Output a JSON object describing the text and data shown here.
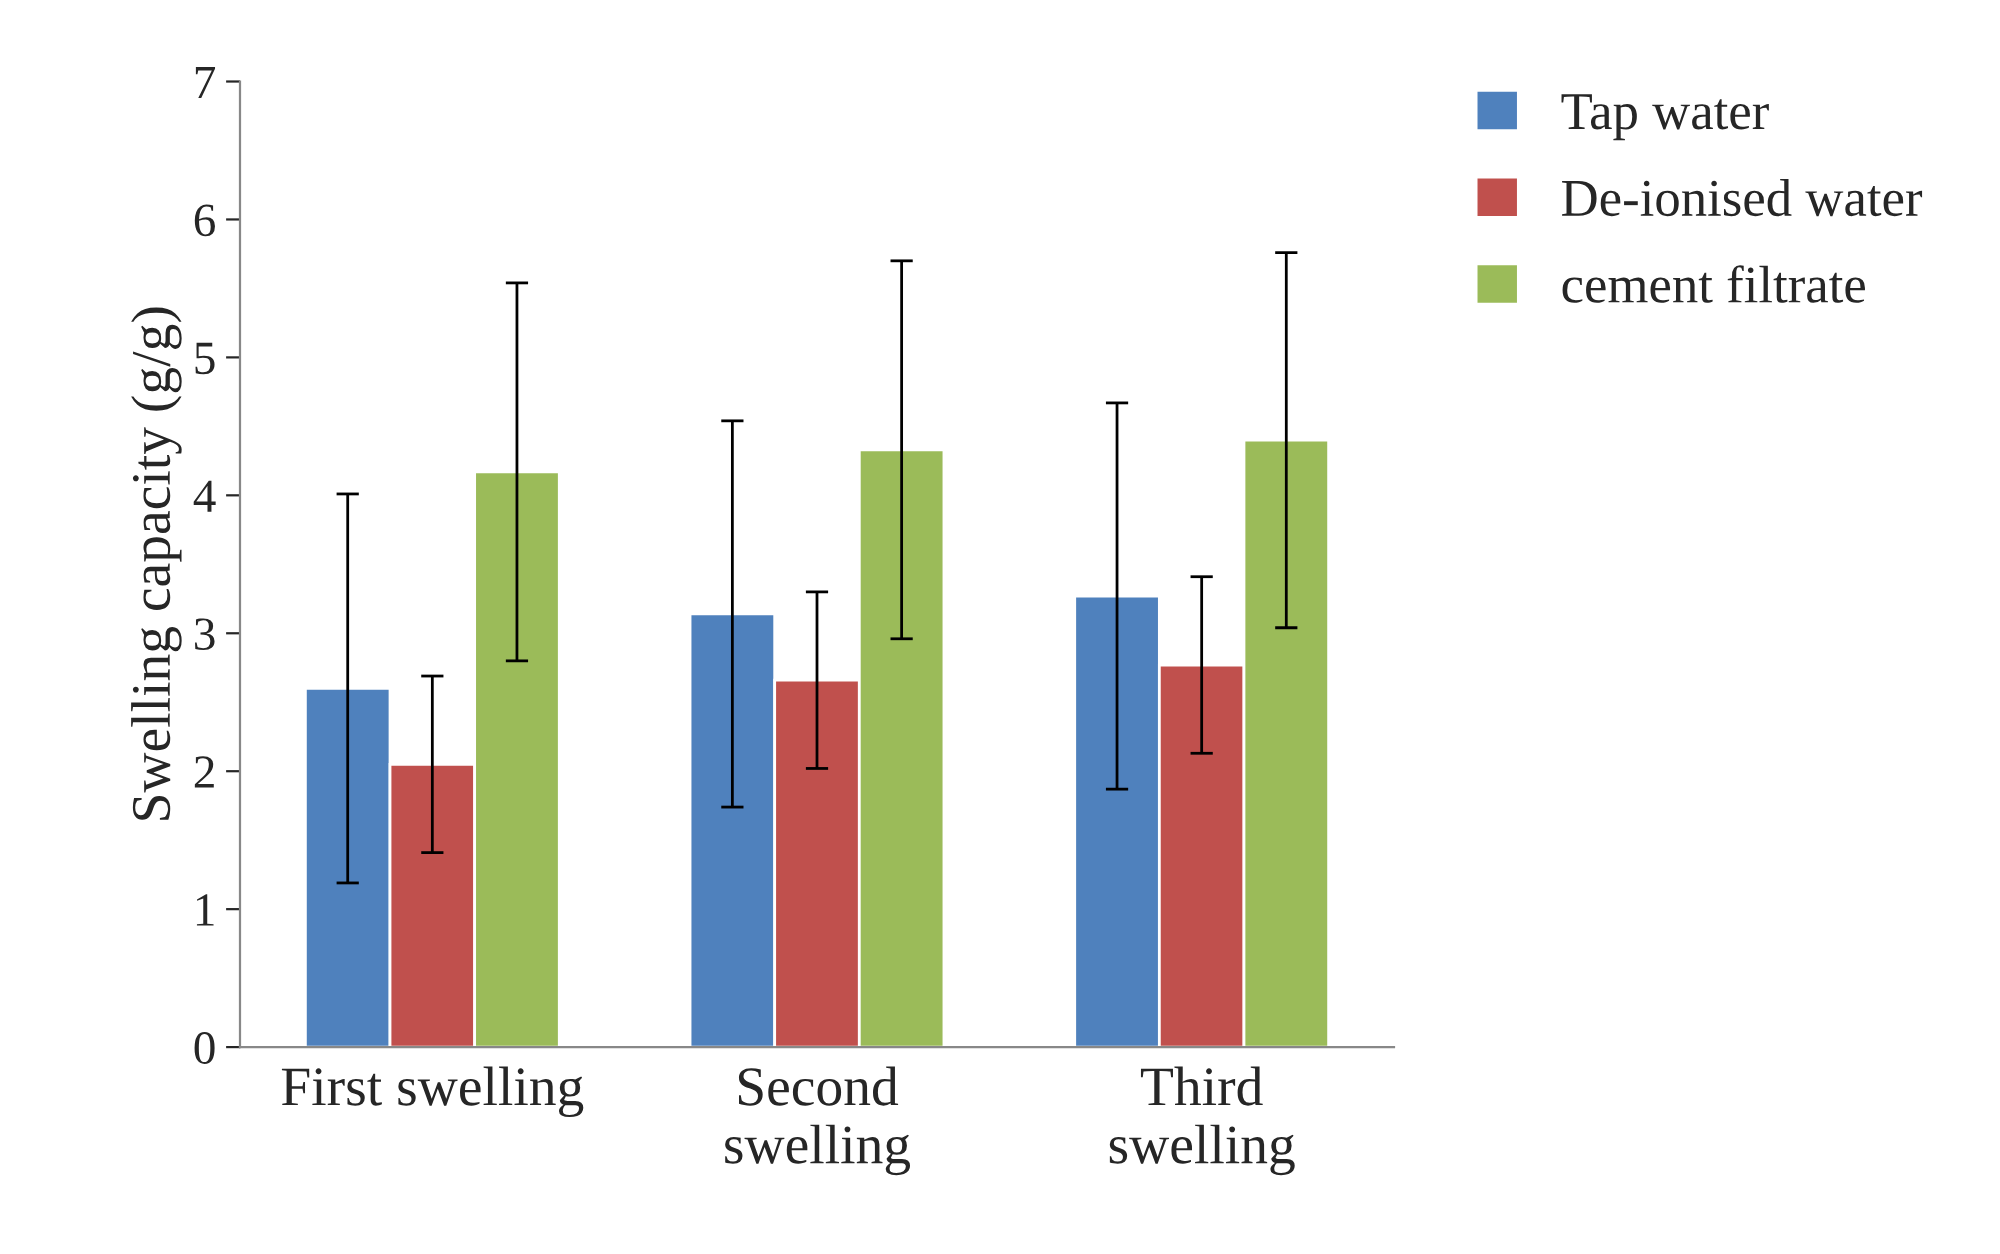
{
  "chart_data": {
    "type": "bar",
    "ylabel": "Swelling capacity (g/g)",
    "categories": [
      "First swelling",
      "Second\nswelling",
      "Third\nswelling"
    ],
    "series": [
      {
        "name": "Tap water",
        "color": "#4f81bd",
        "values": [
          2.6,
          3.14,
          3.27
        ],
        "errors": [
          1.41,
          1.4,
          1.4
        ]
      },
      {
        "name": "De-ionised water",
        "color": "#c0504d",
        "values": [
          2.05,
          2.66,
          2.77
        ],
        "errors": [
          0.64,
          0.64,
          0.64
        ]
      },
      {
        "name": "cement filtrate",
        "color": "#9bbb59",
        "values": [
          4.17,
          4.33,
          4.4
        ],
        "errors": [
          1.37,
          1.37,
          1.36
        ]
      }
    ],
    "ylim": [
      0,
      7
    ],
    "yticks": [
      0,
      1,
      2,
      3,
      4,
      5,
      6,
      7
    ],
    "grid": false,
    "legend": "top right"
  }
}
